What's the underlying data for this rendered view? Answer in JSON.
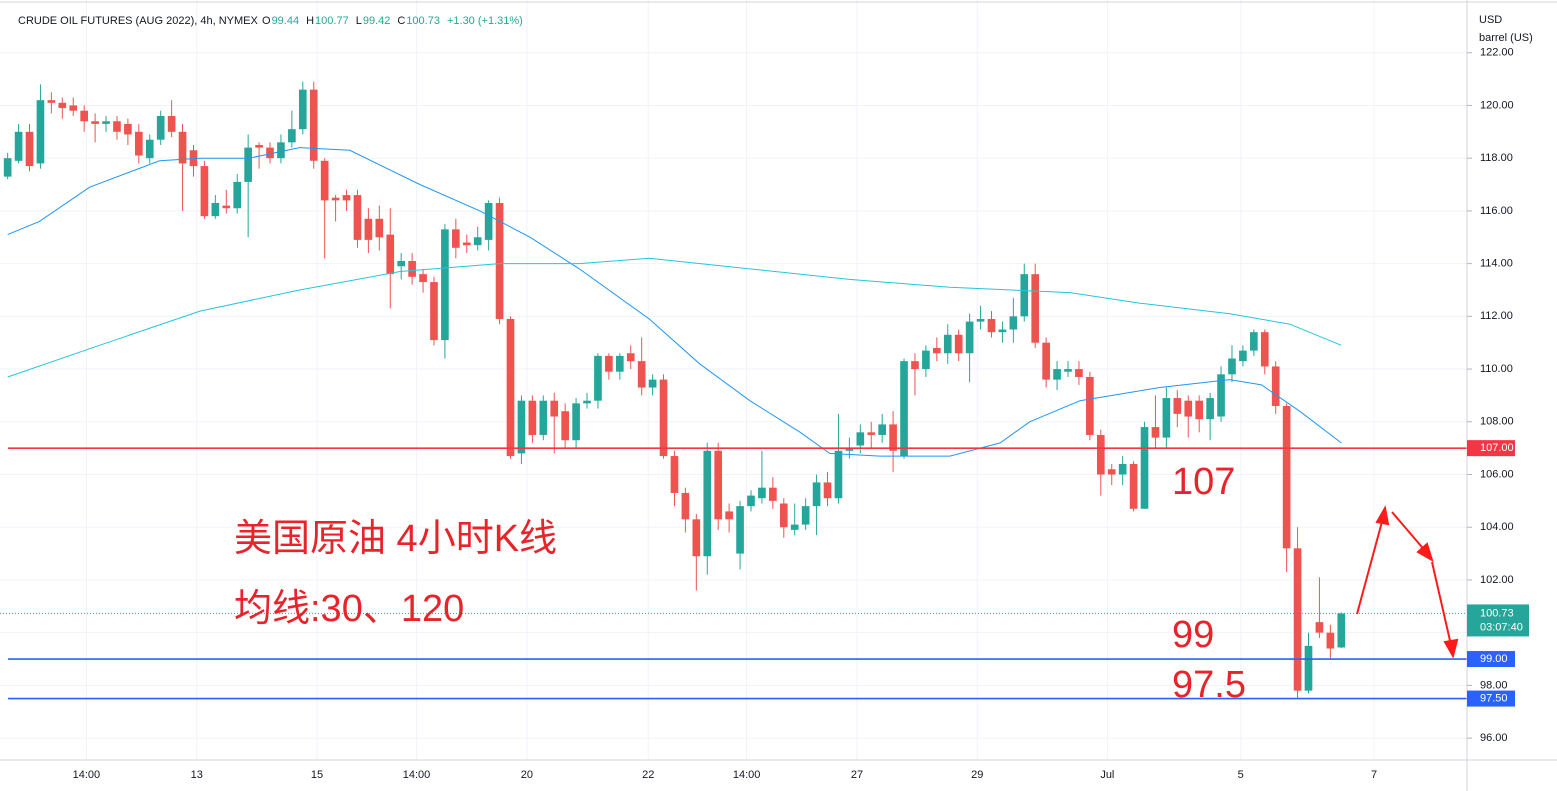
{
  "chart_data": {
    "type": "candlestick",
    "header": {
      "symbol": "CRUDE OIL FUTURES (AUG 2022), 4h, NYMEX",
      "ohlc_labels": [
        "O",
        "H",
        "L",
        "C"
      ],
      "ohlc_values": [
        "99.44",
        "100.77",
        "99.42",
        "100.73"
      ],
      "change": "+1.30 (+1.31%)"
    },
    "axis_unit": [
      "USD",
      "barrel (US)"
    ],
    "annotations": [
      "美国原油 4小时K线",
      "均线:30、120",
      "107",
      "99",
      "97.5"
    ],
    "up_color": "#26a69a",
    "down_color": "#ef5350",
    "candles": [
      [
        117.3,
        118.2,
        117.2,
        118.0
      ],
      [
        117.9,
        119.3,
        117.8,
        119.0
      ],
      [
        119.0,
        119.3,
        117.5,
        117.7
      ],
      [
        117.8,
        120.8,
        117.6,
        120.2
      ],
      [
        120.2,
        120.5,
        119.7,
        120.1
      ],
      [
        120.1,
        120.3,
        119.5,
        119.9
      ],
      [
        120.0,
        120.3,
        119.6,
        119.8
      ],
      [
        119.8,
        120.0,
        119.0,
        119.4
      ],
      [
        119.4,
        119.7,
        118.6,
        119.3
      ],
      [
        119.3,
        119.6,
        119.0,
        119.4
      ],
      [
        119.4,
        119.6,
        118.7,
        119.0
      ],
      [
        119.3,
        119.5,
        118.5,
        118.9
      ],
      [
        119.0,
        119.3,
        117.8,
        118.1
      ],
      [
        118.0,
        118.9,
        117.8,
        118.7
      ],
      [
        118.7,
        119.8,
        118.5,
        119.6
      ],
      [
        119.6,
        120.2,
        118.8,
        119.0
      ],
      [
        119.0,
        119.3,
        116.0,
        117.8
      ],
      [
        118.3,
        118.5,
        117.3,
        117.7
      ],
      [
        117.7,
        117.9,
        115.7,
        115.8
      ],
      [
        115.8,
        116.6,
        115.7,
        116.3
      ],
      [
        116.2,
        116.8,
        115.9,
        116.1
      ],
      [
        116.1,
        117.4,
        115.9,
        117.1
      ],
      [
        117.1,
        118.9,
        115.0,
        118.4
      ],
      [
        118.5,
        118.6,
        117.6,
        118.4
      ],
      [
        118.4,
        118.6,
        117.8,
        118.0
      ],
      [
        118.0,
        118.9,
        117.8,
        118.6
      ],
      [
        118.6,
        119.8,
        118.4,
        119.1
      ],
      [
        119.1,
        120.9,
        118.9,
        120.6
      ],
      [
        120.6,
        120.9,
        117.6,
        117.9
      ],
      [
        117.9,
        118.0,
        114.2,
        116.4
      ],
      [
        116.5,
        116.6,
        115.6,
        116.4
      ],
      [
        116.6,
        116.8,
        116.0,
        116.4
      ],
      [
        116.6,
        116.8,
        114.6,
        114.9
      ],
      [
        115.7,
        116.1,
        114.4,
        114.9
      ],
      [
        115.7,
        116.2,
        114.5,
        115.0
      ],
      [
        115.1,
        116.1,
        112.3,
        113.6
      ],
      [
        113.9,
        114.4,
        113.4,
        114.1
      ],
      [
        114.1,
        114.4,
        113.2,
        113.5
      ],
      [
        113.6,
        113.8,
        112.9,
        113.3
      ],
      [
        113.3,
        113.5,
        110.9,
        111.1
      ],
      [
        111.1,
        115.5,
        110.4,
        115.3
      ],
      [
        115.3,
        115.7,
        114.2,
        114.6
      ],
      [
        114.8,
        115.1,
        114.4,
        114.7
      ],
      [
        114.7,
        115.4,
        114.5,
        115.0
      ],
      [
        114.9,
        116.4,
        114.5,
        116.3
      ],
      [
        116.3,
        116.5,
        111.7,
        111.9
      ],
      [
        111.9,
        112.0,
        106.6,
        106.7
      ],
      [
        106.8,
        109.0,
        106.4,
        108.8
      ],
      [
        108.8,
        109.0,
        107.2,
        107.5
      ],
      [
        107.5,
        109.0,
        107.3,
        108.8
      ],
      [
        108.8,
        109.1,
        106.8,
        108.2
      ],
      [
        108.4,
        108.7,
        107.0,
        107.3
      ],
      [
        107.3,
        108.9,
        107.0,
        108.7
      ],
      [
        108.7,
        109.1,
        108.5,
        108.8
      ],
      [
        108.8,
        110.6,
        108.5,
        110.5
      ],
      [
        110.5,
        110.6,
        109.6,
        109.9
      ],
      [
        109.9,
        110.6,
        109.6,
        110.5
      ],
      [
        110.6,
        110.9,
        110.0,
        110.3
      ],
      [
        110.3,
        111.2,
        109.0,
        109.3
      ],
      [
        109.3,
        109.8,
        109.0,
        109.6
      ],
      [
        109.6,
        109.8,
        106.6,
        106.7
      ],
      [
        106.7,
        106.9,
        104.8,
        105.3
      ],
      [
        105.3,
        105.5,
        103.8,
        104.3
      ],
      [
        104.3,
        104.5,
        101.6,
        102.9
      ],
      [
        102.9,
        107.2,
        102.2,
        106.9
      ],
      [
        106.9,
        107.2,
        103.9,
        104.3
      ],
      [
        104.6,
        104.9,
        103.8,
        104.3
      ],
      [
        103.0,
        105.0,
        102.4,
        104.8
      ],
      [
        104.8,
        105.4,
        104.6,
        105.2
      ],
      [
        105.1,
        106.9,
        104.9,
        105.5
      ],
      [
        105.5,
        105.9,
        104.7,
        105.0
      ],
      [
        104.9,
        105.1,
        103.6,
        104.0
      ],
      [
        103.9,
        104.9,
        103.7,
        104.1
      ],
      [
        104.1,
        105.1,
        103.9,
        104.8
      ],
      [
        104.8,
        106.0,
        103.7,
        105.7
      ],
      [
        105.7,
        106.1,
        104.8,
        105.1
      ],
      [
        105.1,
        108.3,
        104.9,
        106.9
      ],
      [
        106.9,
        107.4,
        106.6,
        107.0
      ],
      [
        107.1,
        107.9,
        106.8,
        107.6
      ],
      [
        107.6,
        108.0,
        107.0,
        107.5
      ],
      [
        107.5,
        108.3,
        107.2,
        107.9
      ],
      [
        107.9,
        108.4,
        106.1,
        106.9
      ],
      [
        106.7,
        110.4,
        106.6,
        110.3
      ],
      [
        110.3,
        110.6,
        109.0,
        110.0
      ],
      [
        110.0,
        110.9,
        109.7,
        110.7
      ],
      [
        110.8,
        111.2,
        110.3,
        110.6
      ],
      [
        110.6,
        111.7,
        110.2,
        111.3
      ],
      [
        111.3,
        111.5,
        110.3,
        110.6
      ],
      [
        110.6,
        112.1,
        109.5,
        111.8
      ],
      [
        111.8,
        112.4,
        111.5,
        111.9
      ],
      [
        111.9,
        112.2,
        111.2,
        111.4
      ],
      [
        111.4,
        111.8,
        111.0,
        111.5
      ],
      [
        111.5,
        112.7,
        111.0,
        112.0
      ],
      [
        112.0,
        114.0,
        111.8,
        113.6
      ],
      [
        113.6,
        114.0,
        110.8,
        111.0
      ],
      [
        111.0,
        111.2,
        109.3,
        109.6
      ],
      [
        109.6,
        110.3,
        109.2,
        110.0
      ],
      [
        109.9,
        110.3,
        109.7,
        110.0
      ],
      [
        110.0,
        110.3,
        109.4,
        109.7
      ],
      [
        109.7,
        109.9,
        107.3,
        107.5
      ],
      [
        107.5,
        107.7,
        105.2,
        106.0
      ],
      [
        106.2,
        106.4,
        105.6,
        106.0
      ],
      [
        106.0,
        106.7,
        105.6,
        106.4
      ],
      [
        106.4,
        106.5,
        104.6,
        104.7
      ],
      [
        104.7,
        108.0,
        104.7,
        107.8
      ],
      [
        107.8,
        109.0,
        107.0,
        107.4
      ],
      [
        107.4,
        109.3,
        107.0,
        108.9
      ],
      [
        108.9,
        109.2,
        107.8,
        108.3
      ],
      [
        108.8,
        109.0,
        107.4,
        108.2
      ],
      [
        108.8,
        109.0,
        107.6,
        108.1
      ],
      [
        108.1,
        109.1,
        107.3,
        108.9
      ],
      [
        108.2,
        110.1,
        108.0,
        109.8
      ],
      [
        109.8,
        110.9,
        109.5,
        110.4
      ],
      [
        110.3,
        110.9,
        110.1,
        110.7
      ],
      [
        110.7,
        111.5,
        110.5,
        111.4
      ],
      [
        111.4,
        111.5,
        109.8,
        110.1
      ],
      [
        110.1,
        110.3,
        108.3,
        108.6
      ],
      [
        108.6,
        108.7,
        102.3,
        103.2
      ],
      [
        103.2,
        104.0,
        97.5,
        97.8
      ],
      [
        97.8,
        100.0,
        97.7,
        99.5
      ],
      [
        100.4,
        102.1,
        99.8,
        100.0
      ],
      [
        100.0,
        100.3,
        99.0,
        99.4
      ],
      [
        99.44,
        100.77,
        99.42,
        100.73
      ]
    ],
    "series": [
      {
        "name": "MA 30",
        "color": "#2196f3",
        "x": [
          0,
          2.9,
          7.5,
          13.9,
          17.6,
          22.1,
          26.7,
          31.3,
          37.7,
          43.2,
          47.8,
          52.3,
          58.7,
          63.3,
          67.9,
          72.5,
          75.2,
          79.8,
          86.2,
          90.8,
          93.5,
          98.1,
          105.4,
          111.8,
          114.7,
          118.2,
          122
        ],
        "values": [
          115.1,
          115.6,
          116.9,
          117.9,
          118.0,
          118.0,
          118.4,
          118.3,
          117.0,
          116.0,
          115.0,
          113.8,
          111.9,
          110.2,
          108.8,
          107.6,
          106.8,
          106.7,
          106.7,
          107.2,
          108.0,
          108.8,
          109.3,
          109.6,
          109.4,
          108.4,
          107.2
        ]
      },
      {
        "name": "MA 120",
        "color": "#26c6da",
        "x": [
          0,
          8.4,
          17.6,
          26.7,
          35.9,
          45.0,
          52.3,
          58.7,
          67.9,
          77.0,
          86.2,
          97.2,
          103.6,
          111.8,
          117.3,
          122
        ],
        "values": [
          109.7,
          110.9,
          112.2,
          113.0,
          113.7,
          114.0,
          114.0,
          114.2,
          113.8,
          113.4,
          113.1,
          112.9,
          112.5,
          112.1,
          111.7,
          110.9
        ]
      }
    ],
    "levels": [
      {
        "value": 107,
        "label": "107.00",
        "color": "#f23645"
      },
      {
        "value": 99,
        "label": "99.00",
        "color": "#2962ff"
      },
      {
        "value": 97.5,
        "label": "97.50",
        "color": "#2962ff"
      }
    ],
    "last_price": {
      "value": 100.73,
      "label": "100.73",
      "countdown": "03:07:40",
      "color": "#26a69a"
    },
    "xlim": [
      -0.7,
      133.5
    ],
    "xticks": [
      {
        "value": 7.2,
        "label": "14:00"
      },
      {
        "value": 17.3,
        "label": "13"
      },
      {
        "value": 28.3,
        "label": "15"
      },
      {
        "value": 37.4,
        "label": "14:00"
      },
      {
        "value": 47.5,
        "label": "20"
      },
      {
        "value": 58.6,
        "label": "22"
      },
      {
        "value": 67.6,
        "label": "14:00"
      },
      {
        "value": 77.7,
        "label": "27"
      },
      {
        "value": 88.7,
        "label": "29"
      },
      {
        "value": 100.6,
        "label": "Jul"
      },
      {
        "value": 112.8,
        "label": "5"
      },
      {
        "value": 125,
        "label": "7"
      }
    ],
    "ylim": [
      95.17,
      124.0
    ],
    "yticks": [
      {
        "value": 96,
        "label": "96.00"
      },
      {
        "value": 98,
        "label": "98.00"
      },
      {
        "value": 100,
        "label": "100.00"
      },
      {
        "value": 102,
        "label": "102.00"
      },
      {
        "value": 104,
        "label": "104.00"
      },
      {
        "value": 106,
        "label": "106.00"
      },
      {
        "value": 108,
        "label": "108.00"
      },
      {
        "value": 110,
        "label": "110.00"
      },
      {
        "value": 112,
        "label": "112.00"
      },
      {
        "value": 114,
        "label": "114.00"
      },
      {
        "value": 116,
        "label": "116.00"
      },
      {
        "value": 118,
        "label": "118.00"
      },
      {
        "value": 120,
        "label": "120.00"
      },
      {
        "value": 122,
        "label": "122.00"
      }
    ],
    "grid": true
  }
}
